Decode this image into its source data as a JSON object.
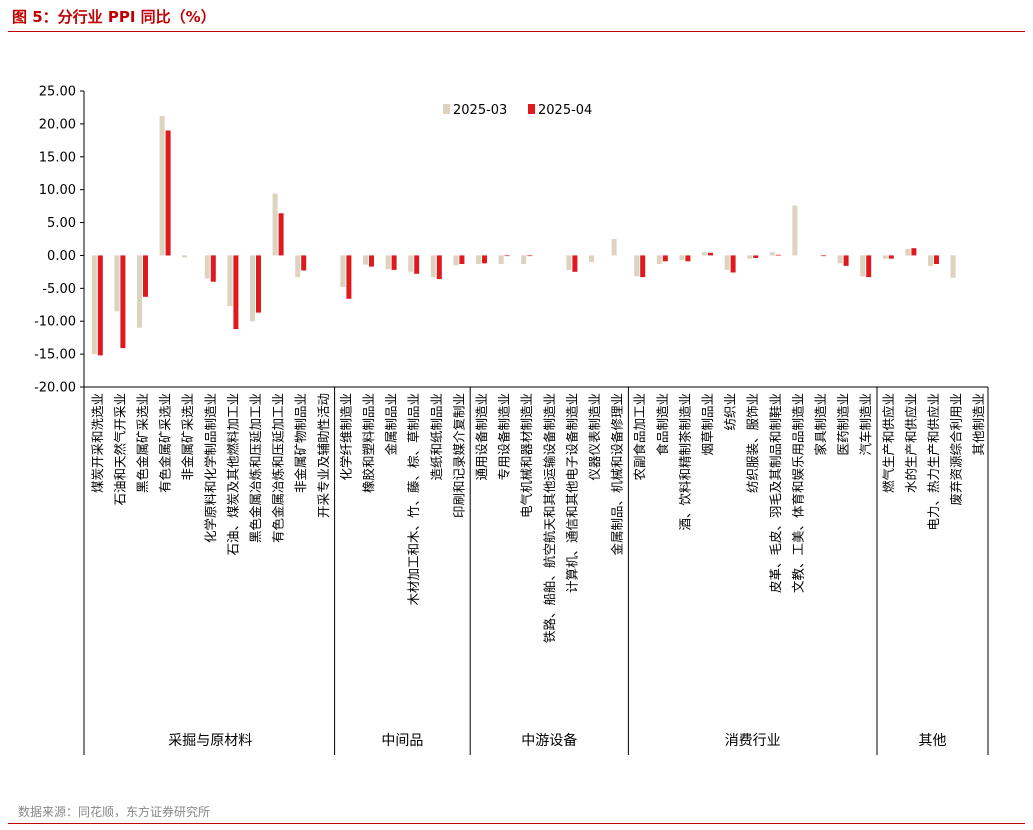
{
  "header": {
    "title": "图 5：分行业 PPI 同比（%）"
  },
  "footer": {
    "source": "数据来源：同花顺，东方证券研究所"
  },
  "colors": {
    "accent": "#c00000",
    "series1": "#ddd3bf",
    "series2": "#e0191f"
  },
  "chart_data": {
    "type": "bar",
    "title": "图 5：分行业 PPI 同比（%）",
    "ylim": [
      -20,
      25
    ],
    "yticks": [
      "25.00",
      "20.00",
      "15.00",
      "10.00",
      "5.00",
      "0.00",
      "-5.00",
      "-10.00",
      "-15.00",
      "-20.00"
    ],
    "grid": false,
    "legend_position": "top-center",
    "categories": [
      "煤炭开采和洗选业",
      "石油和天然气开采业",
      "黑色金属矿采选业",
      "有色金属矿采选业",
      "非金属矿采选业",
      "化学原料和化学制品制造业",
      "石油、煤炭及其他燃料加工业",
      "黑色金属冶炼和压延加工业",
      "有色金属冶炼和压延加工业",
      "非金属矿物制品业",
      "开采专业及辅助性活动",
      "化学纤维制造业",
      "橡胶和塑料制品业",
      "金属制品业",
      "木材加工和木、竹、藤、棕、草制品业",
      "造纸和纸制品业",
      "印刷和记录媒介复制业",
      "通用设备制造业",
      "专用设备制造业",
      "电气机械和器材制造业",
      "铁路、船舶、航空航天和其他运输设备制造业",
      "计算机、通信和其他电子设备制造业",
      "仪器仪表制造业",
      "金属制品、机械和设备修理业",
      "农副食品加工业",
      "食品制造业",
      "酒、饮料和精制茶制造业",
      "烟草制品业",
      "纺织业",
      "纺织服装、服饰业",
      "皮革、毛皮、羽毛及其制品和制鞋业",
      "文教、工美、体育和娱乐用品制造业",
      "家具制造业",
      "医药制造业",
      "汽车制造业",
      "燃气生产和供应业",
      "水的生产和供应业",
      "电力、热力生产和供应业",
      "废弃资源综合利用业",
      "其他制造业"
    ],
    "series": [
      {
        "name": "2025-03",
        "values": [
          -15.0,
          -8.5,
          -11.0,
          21.2,
          -0.3,
          -3.5,
          -7.7,
          -10.0,
          9.4,
          -3.3,
          0.0,
          -4.8,
          -1.4,
          -2.1,
          -2.5,
          -3.3,
          -1.5,
          -1.3,
          -1.3,
          -1.3,
          0.0,
          -2.2,
          -1.0,
          2.5,
          -3.2,
          -1.3,
          -0.7,
          0.5,
          -2.2,
          -0.5,
          0.5,
          7.6,
          0.0,
          -1.2,
          -3.2,
          -0.5,
          1.0,
          -1.6,
          -3.4,
          0.0
        ]
      },
      {
        "name": "2025-04",
        "values": [
          -15.2,
          -14.1,
          -6.3,
          19.0,
          0.0,
          -4.0,
          -11.2,
          -8.7,
          6.4,
          -2.3,
          0.0,
          -6.6,
          -1.7,
          -2.2,
          -2.8,
          -3.6,
          -1.3,
          -1.2,
          -0.1,
          -0.1,
          0.0,
          -2.5,
          0.0,
          0.0,
          -3.3,
          -0.9,
          -0.9,
          0.4,
          -2.6,
          -0.4,
          0.1,
          0.0,
          -0.1,
          -1.6,
          -3.3,
          -0.5,
          1.1,
          -1.3,
          0.0,
          0.0
        ]
      }
    ],
    "groups": [
      {
        "label": "采掘与原材料",
        "start": 0,
        "end": 10
      },
      {
        "label": "中间品",
        "start": 11,
        "end": 16
      },
      {
        "label": "中游设备",
        "start": 17,
        "end": 23
      },
      {
        "label": "消费行业",
        "start": 24,
        "end": 34
      },
      {
        "label": "其他",
        "start": 35,
        "end": 39
      }
    ]
  }
}
